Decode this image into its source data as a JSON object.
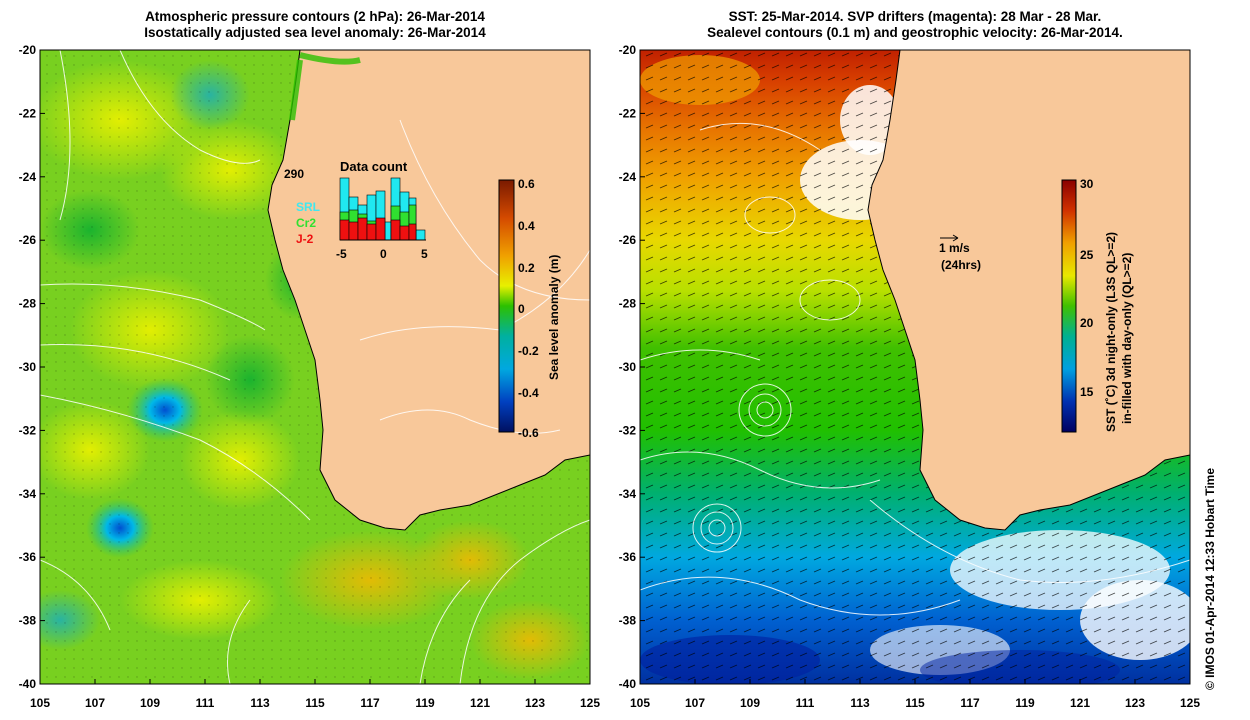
{
  "left_panel": {
    "title_line1": "Atmospheric pressure contours (2 hPa): 26-Mar-2014",
    "title_line2": "Isostatically adjusted sea level anomaly: 26-Mar-2014",
    "colorbar_label": "Sea level anomaly (m)",
    "colorbar_ticks": [
      "0.6",
      "0.4",
      "0.2",
      "0",
      "-0.2",
      "-0.4",
      "-0.6"
    ],
    "inset": {
      "title": "Data count",
      "max_label": "290",
      "legend": [
        "SRL",
        "Cr2",
        "J-2"
      ],
      "x_ticks": [
        "-5",
        "0",
        "5"
      ]
    }
  },
  "right_panel": {
    "title_line1": "SST: 25-Mar-2014. SVP drifters (magenta): 28 Mar - 28 Mar.",
    "title_line2": "Sealevel contours (0.1 m) and geostrophic velocity: 26-Mar-2014.",
    "colorbar_label_line1": "SST (˚C)  3d night-only (L3S QL>=2)",
    "colorbar_label_line2": "in-filled with day-only (QL>=2)",
    "colorbar_ticks": [
      "30",
      "25",
      "20",
      "15"
    ],
    "arrow_label_1": "1 m/s",
    "arrow_label_2": "(24hrs)"
  },
  "axes": {
    "y_ticks": [
      "-20",
      "-22",
      "-24",
      "-26",
      "-28",
      "-30",
      "-32",
      "-34",
      "-36",
      "-38",
      "-40"
    ],
    "x_ticks": [
      "105",
      "107",
      "109",
      "111",
      "113",
      "115",
      "117",
      "119",
      "121",
      "123",
      "125"
    ]
  },
  "credit": "© IMOS 01-Apr-2014 12:33 Hobart Time",
  "colors": {
    "land": "#f8c89a",
    "slp_bar": [
      "#7a1a00",
      "#d44a00",
      "#f0a000",
      "#e8f000",
      "#2cc000",
      "#00a8e0",
      "#0050c8",
      "#001060"
    ],
    "sst_bar": [
      "#8a0000",
      "#d03000",
      "#f0a000",
      "#e8e800",
      "#40c000",
      "#00b090",
      "#00a0e0",
      "#0030b0",
      "#000060"
    ]
  }
}
